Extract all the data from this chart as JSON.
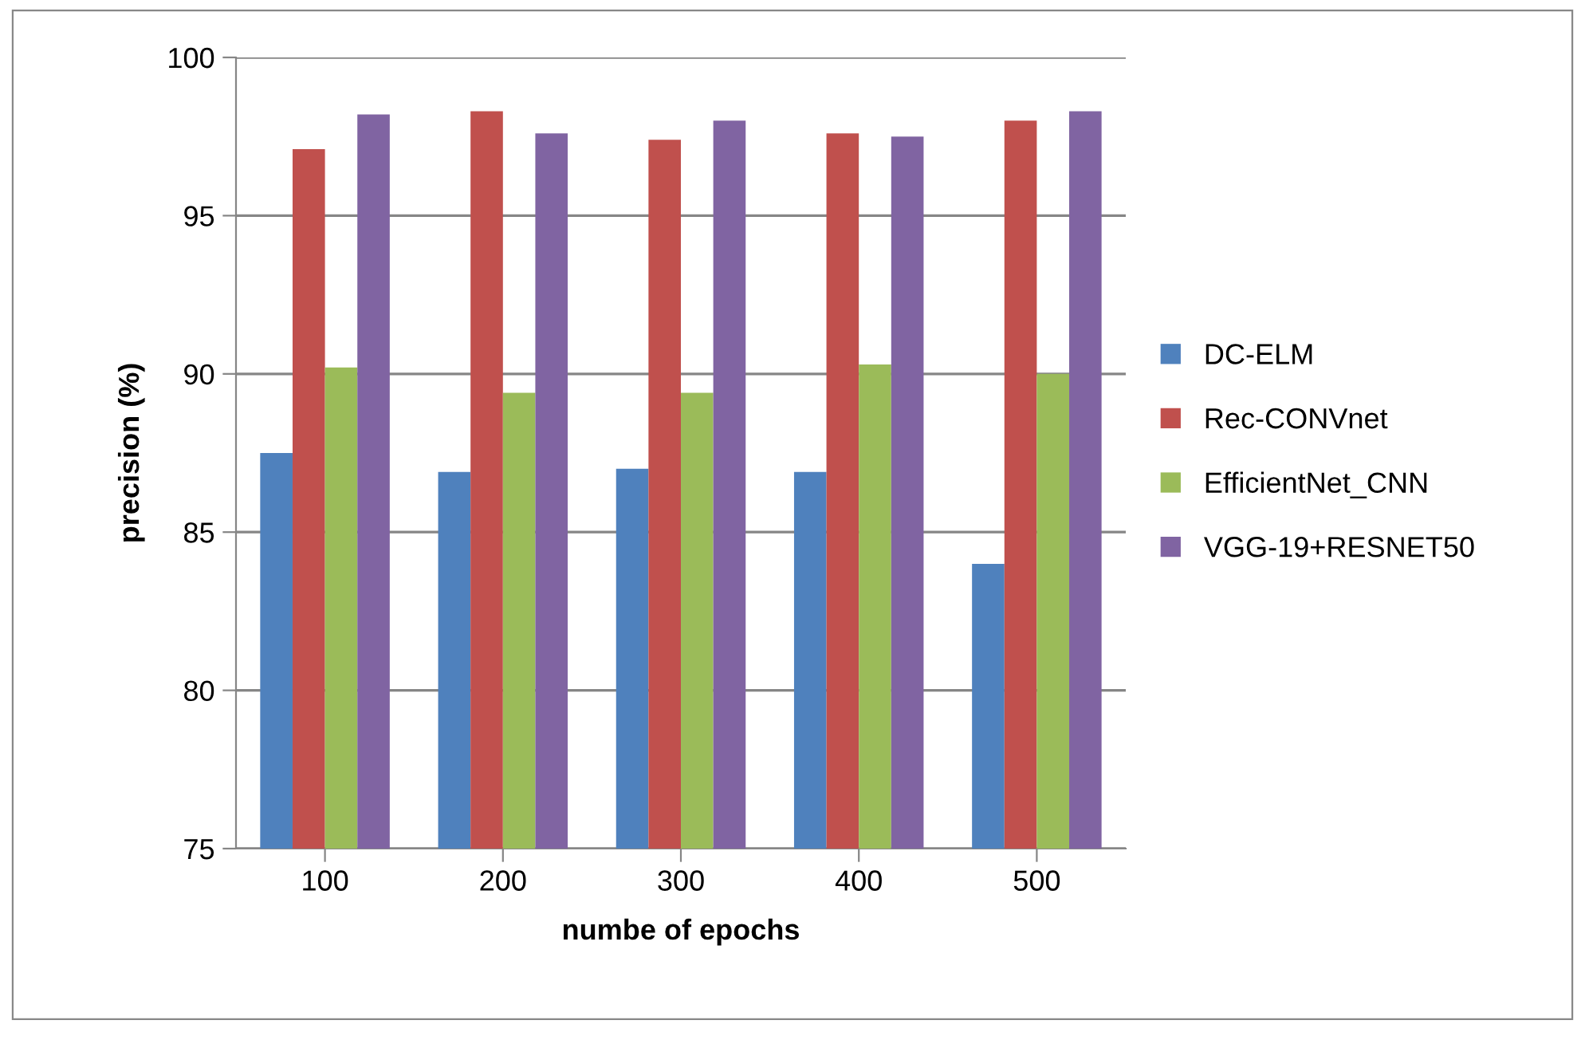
{
  "chart_data": {
    "type": "bar",
    "xlabel": "numbe of epochs",
    "ylabel": "precision (%)",
    "categories": [
      "100",
      "200",
      "300",
      "400",
      "500"
    ],
    "series": [
      {
        "name": "DC-ELM",
        "color": "#4f81bd",
        "values": [
          87.5,
          86.9,
          87.0,
          86.9,
          84.0
        ]
      },
      {
        "name": "Rec-CONVnet",
        "color": "#c0504d",
        "values": [
          97.1,
          98.3,
          97.4,
          97.6,
          98.0
        ]
      },
      {
        "name": "EfficientNet_CNN",
        "color": "#9bbb59",
        "values": [
          90.2,
          89.4,
          89.4,
          90.3,
          90.0
        ]
      },
      {
        "name": "VGG-19+RESNET50",
        "color": "#8064a2",
        "values": [
          98.2,
          97.6,
          98.0,
          97.5,
          98.3
        ]
      }
    ],
    "ylim": [
      75,
      100
    ],
    "yticks": [
      75,
      80,
      85,
      90,
      95,
      100
    ],
    "grid": "y",
    "legend": "right"
  }
}
